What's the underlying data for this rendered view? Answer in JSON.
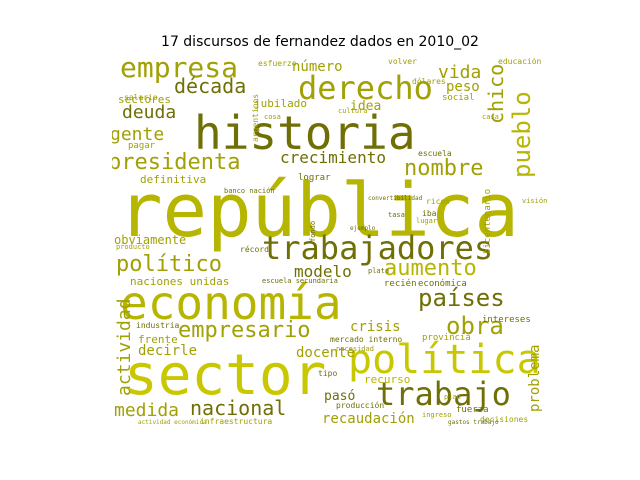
{
  "title": "17 discursos de fernandez dados en 2010_02",
  "colors": {
    "dark": "#6f6f05",
    "mid": "#a1a005",
    "bright": "#c9c800",
    "light": "#b6b500"
  },
  "words": [
    "república",
    "economía",
    "sector",
    "historia",
    "política",
    "trabajadores",
    "derecho",
    "empresa",
    "trabajo",
    "empresario",
    "presidenta",
    "países",
    "político",
    "aumento",
    "nacional",
    "obra",
    "década",
    "pueblo",
    "crecimiento",
    "nombre",
    "actividad",
    "medida",
    "gente",
    "deuda",
    "modelo",
    "chico",
    "vida",
    "obviamente",
    "crisis",
    "docente",
    "decirle",
    "peso",
    "número",
    "problema",
    "recaudación",
    "sectores",
    "idea",
    "recurso",
    "pasó",
    "naciones unidas",
    "definitiva",
    "jubilado",
    "económica",
    "mercado interno",
    "recién",
    "escuela",
    "frente",
    "industria",
    "fuerza",
    "intereses",
    "provincia",
    "bicentenario",
    "salario",
    "pagar",
    "social",
    "esfuerzo",
    "educación",
    "volver",
    "producción",
    "argentinos",
    "lograr",
    "récord",
    "banco nación",
    "escuela secundaria",
    "tipo",
    "ingreso",
    "dólares",
    "decisiones",
    "actividad económica",
    "infraestructura",
    "gastos trabajo",
    "necesidad",
    "ricos",
    "iba",
    "producto",
    "fondo",
    "plata",
    "convertibilidad",
    "ejemplo",
    "cosa",
    "tasa",
    "casa",
    "cultura",
    "plan",
    "lugar",
    "visión"
  ]
}
